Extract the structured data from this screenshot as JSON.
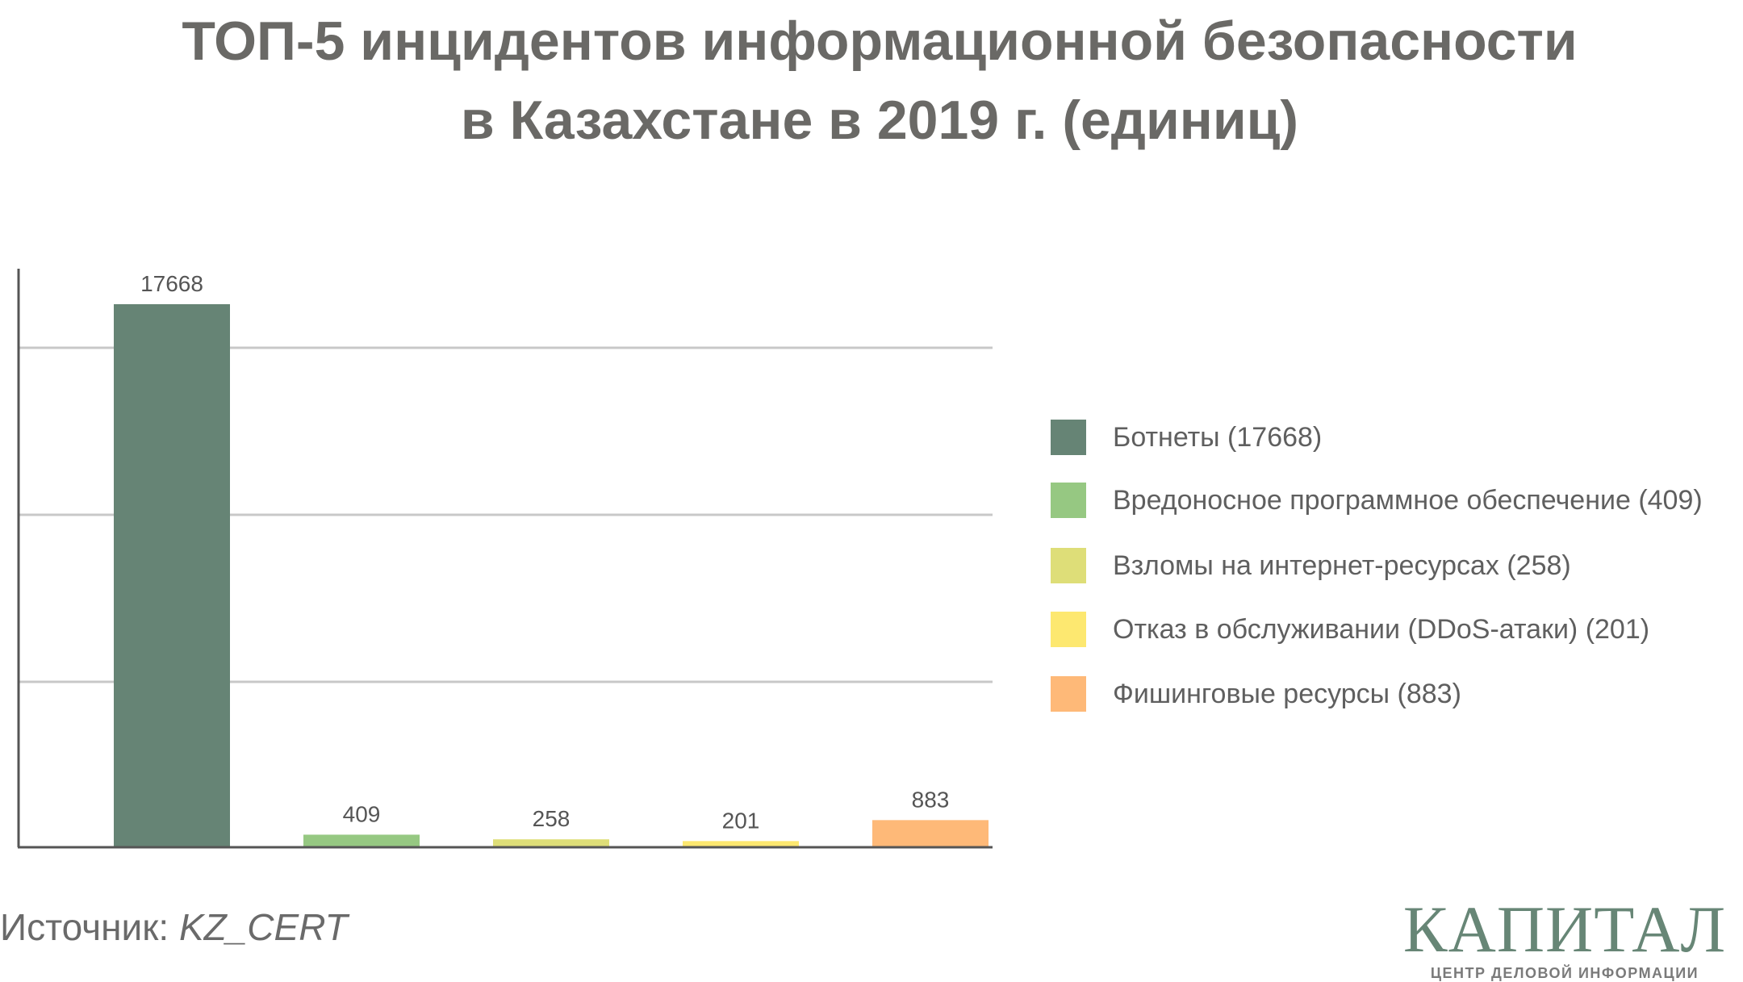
{
  "chart_data": {
    "type": "bar",
    "title": [
      "ТОП-5 инцидентов информационной безопасности",
      "в Казахстане в 2019 г. (единиц)"
    ],
    "categories": [
      "Ботнеты",
      "Вредоносное программное обеспечение",
      "Взломы на интернет-ресурсах",
      "Отказ в обслуживании (DDoS-атаки)",
      "Фишинговые ресурсы"
    ],
    "values": [
      17668,
      409,
      258,
      201,
      883
    ],
    "data_labels": [
      "17668",
      "409",
      "258",
      "201",
      "883"
    ],
    "colors": [
      "#668475",
      "#96c882",
      "#dede78",
      "#fde870",
      "#feb978"
    ],
    "legend": [
      "Ботнеты (17668)",
      "Вредоносное программное обеспечение (409)",
      "Взломы на интернет-ресурсах (258)",
      "Отказ в обслуживании (DDoS-атаки) (201)",
      "Фишинговые ресурсы (883)"
    ],
    "legend_position": "right",
    "grid": true,
    "xlabel": "",
    "ylabel": ""
  },
  "source": {
    "label": "Источник:",
    "value": "KZ_CERT"
  },
  "logo": {
    "name": "КАПИТАЛ",
    "tagline": "ЦЕНТР ДЕЛОВОЙ ИНФОРМАЦИИ"
  }
}
